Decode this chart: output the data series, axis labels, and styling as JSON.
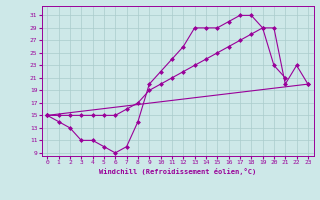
{
  "background_color": "#cde8e8",
  "grid_color": "#aacccc",
  "line_color": "#990099",
  "xlabel": "Windchill (Refroidissement éolien,°C)",
  "xlim": [
    -0.5,
    23.5
  ],
  "ylim": [
    8.5,
    32.5
  ],
  "xticks": [
    0,
    1,
    2,
    3,
    4,
    5,
    6,
    7,
    8,
    9,
    10,
    11,
    12,
    13,
    14,
    15,
    16,
    17,
    18,
    19,
    20,
    21,
    22,
    23
  ],
  "yticks": [
    9,
    11,
    13,
    15,
    17,
    19,
    21,
    23,
    25,
    27,
    29,
    31
  ],
  "curve1_x": [
    0,
    1,
    2,
    3,
    4,
    5,
    6,
    7,
    8,
    9,
    10,
    11,
    12,
    13,
    14,
    15,
    16,
    17,
    18,
    19,
    20,
    21
  ],
  "curve1_y": [
    15,
    14,
    13,
    11,
    11,
    10,
    9,
    10,
    14,
    20,
    22,
    24,
    26,
    29,
    29,
    29,
    30,
    31,
    31,
    29,
    23,
    21
  ],
  "curve2_x": [
    0,
    1,
    2,
    3,
    4,
    5,
    6,
    7,
    8,
    9,
    10,
    11,
    12,
    13,
    14,
    15,
    16,
    17,
    18,
    19,
    20,
    21,
    22,
    23
  ],
  "curve2_y": [
    15,
    15,
    15,
    15,
    15,
    15,
    15,
    16,
    17,
    19,
    20,
    21,
    22,
    23,
    24,
    25,
    26,
    27,
    28,
    29,
    29,
    20,
    23,
    20
  ],
  "curve3_x": [
    0,
    23
  ],
  "curve3_y": [
    15,
    20
  ],
  "figsize": [
    3.2,
    2.0
  ],
  "dpi": 100
}
